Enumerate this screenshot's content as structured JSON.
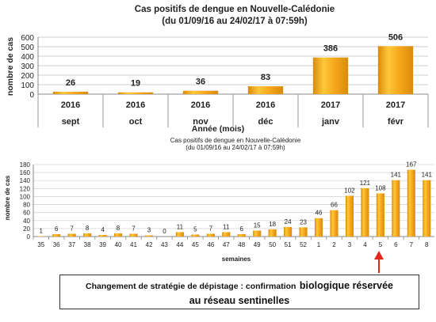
{
  "colors": {
    "bar_top": "#ffd24a",
    "bar_mid": "#f7a81c",
    "bar_dark": "#d98a0c",
    "grid": "#c8c8c8",
    "axis": "#888888",
    "arrow": "#e0281e"
  },
  "annotation": {
    "part1": "Changement de stratégie de dépistage : confirmation",
    "part2": "biologique réservée",
    "part3": "au réseau sentinelles"
  },
  "chart_data": [
    {
      "type": "bar",
      "title": "Cas positifs de dengue en Nouvelle-Calédonie",
      "subtitle": "(du 01/09/16 au 24/02/17 à 07:59h)",
      "ylabel": "nombre de cas",
      "xlabel": "Année (mois)",
      "ylim": [
        0,
        600
      ],
      "yticks": [
        0,
        100,
        200,
        300,
        400,
        500,
        600
      ],
      "grid": true,
      "categories": [
        {
          "year": "2016",
          "month": "sept"
        },
        {
          "year": "2016",
          "month": "oct"
        },
        {
          "year": "2016",
          "month": "nov"
        },
        {
          "year": "2016",
          "month": "déc"
        },
        {
          "year": "2017",
          "month": "janv"
        },
        {
          "year": "2017",
          "month": "févr"
        }
      ],
      "values": [
        26,
        19,
        36,
        83,
        386,
        506
      ]
    },
    {
      "type": "bar",
      "title": "Cas positifs de dengue en Nouvelle-Calédonie",
      "subtitle": "(du 01/09/16 au 24/02/17 à 07:59h)",
      "ylabel": "nombre de cas",
      "xlabel": "semaines",
      "ylim": [
        0,
        180
      ],
      "yticks": [
        0,
        20,
        40,
        60,
        80,
        100,
        120,
        140,
        160,
        180
      ],
      "grid": true,
      "categories": [
        "35",
        "36",
        "37",
        "38",
        "39",
        "40",
        "41",
        "42",
        "43",
        "44",
        "45",
        "46",
        "47",
        "48",
        "49",
        "50",
        "51",
        "52",
        "1",
        "2",
        "3",
        "4",
        "5",
        "6",
        "7",
        "8"
      ],
      "values": [
        1,
        6,
        7,
        8,
        4,
        8,
        7,
        3,
        0,
        11,
        5,
        7,
        11,
        6,
        15,
        18,
        24,
        23,
        46,
        66,
        102,
        121,
        108,
        141,
        167,
        141
      ]
    }
  ]
}
